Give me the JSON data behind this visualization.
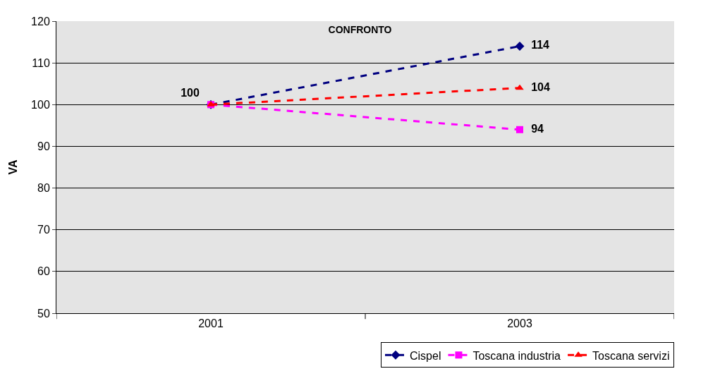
{
  "chart_data": {
    "type": "line",
    "title": "CONFRONTO",
    "ylabel": "VA",
    "categories": [
      "2001",
      "2003"
    ],
    "series": [
      {
        "name": "Cispel",
        "color": "#000080",
        "marker": "diamond",
        "values": [
          100,
          114
        ],
        "value_labels": [
          "100",
          "114"
        ]
      },
      {
        "name": "Toscana industria",
        "color": "#ff00ff",
        "marker": "square",
        "values": [
          100,
          94
        ],
        "value_labels": [
          null,
          "94"
        ]
      },
      {
        "name": "Toscana servizi",
        "color": "#ff0000",
        "marker": "triangle",
        "values": [
          100,
          104
        ],
        "value_labels": [
          null,
          "104"
        ]
      }
    ],
    "ylim": [
      50,
      120
    ],
    "yticks": [
      50,
      60,
      70,
      80,
      90,
      100,
      110,
      120
    ],
    "grid": "y",
    "legend": "bottom right",
    "line_style": "dashed"
  }
}
